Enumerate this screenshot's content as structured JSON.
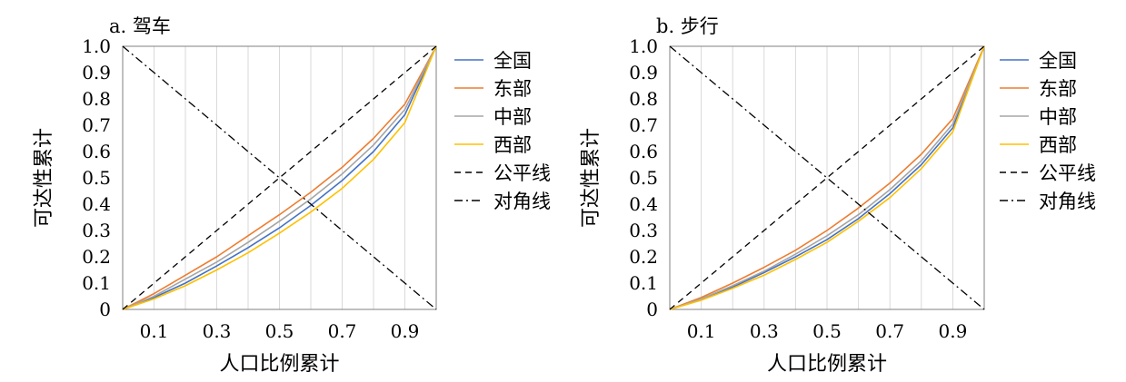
{
  "chart_data": [
    {
      "type": "line",
      "title": "a. 驾车",
      "xlabel": "人口比例累计",
      "ylabel": "可达性累计",
      "xlim": [
        0,
        1
      ],
      "ylim": [
        0,
        1
      ],
      "xticks": [
        0.1,
        0.3,
        0.5,
        0.7,
        0.9
      ],
      "xtick_labels": [
        "0.1",
        "0.3",
        "0.5",
        "0.7",
        "0.9"
      ],
      "yticks": [
        0,
        0.1,
        0.2,
        0.3,
        0.4,
        0.5,
        0.6,
        0.7,
        0.8,
        0.9,
        1.0
      ],
      "ytick_labels": [
        "0",
        "0.1",
        "0.2",
        "0.3",
        "0.4",
        "0.5",
        "0.6",
        "0.7",
        "0.8",
        "0.9",
        "1.0"
      ],
      "grid": "vertical",
      "legend_position": "right",
      "x": [
        0,
        0.1,
        0.2,
        0.3,
        0.4,
        0.5,
        0.6,
        0.7,
        0.8,
        0.9,
        1.0
      ],
      "series": [
        {
          "name": "全国",
          "color": "#4472c4",
          "style": "solid",
          "values": [
            0,
            0.045,
            0.1,
            0.165,
            0.235,
            0.31,
            0.395,
            0.49,
            0.6,
            0.74,
            1.0
          ]
        },
        {
          "name": "东部",
          "color": "#ed7d31",
          "style": "solid",
          "values": [
            0,
            0.06,
            0.13,
            0.2,
            0.28,
            0.36,
            0.445,
            0.54,
            0.65,
            0.78,
            1.0
          ]
        },
        {
          "name": "中部",
          "color": "#a5a5a5",
          "style": "solid",
          "values": [
            0,
            0.05,
            0.115,
            0.18,
            0.255,
            0.335,
            0.42,
            0.515,
            0.625,
            0.76,
            1.0
          ]
        },
        {
          "name": "西部",
          "color": "#ffc000",
          "style": "solid",
          "values": [
            0,
            0.04,
            0.09,
            0.15,
            0.215,
            0.29,
            0.37,
            0.46,
            0.57,
            0.71,
            1.0
          ]
        },
        {
          "name": "公平线",
          "color": "#000000",
          "style": "dash",
          "values": [
            0,
            0.1,
            0.2,
            0.3,
            0.4,
            0.5,
            0.6,
            0.7,
            0.8,
            0.9,
            1.0
          ]
        },
        {
          "name": "对角线",
          "color": "#000000",
          "style": "dashdot",
          "values": [
            1.0,
            0.9,
            0.8,
            0.7,
            0.6,
            0.5,
            0.4,
            0.3,
            0.2,
            0.1,
            0
          ]
        }
      ]
    },
    {
      "type": "line",
      "title": "b. 步行",
      "xlabel": "人口比例累计",
      "ylabel": "可达性累计",
      "xlim": [
        0,
        1
      ],
      "ylim": [
        0,
        1
      ],
      "xticks": [
        0.1,
        0.3,
        0.5,
        0.7,
        0.9
      ],
      "xtick_labels": [
        "0.1",
        "0.3",
        "0.5",
        "0.7",
        "0.9"
      ],
      "yticks": [
        0,
        0.1,
        0.2,
        0.3,
        0.4,
        0.5,
        0.6,
        0.7,
        0.8,
        0.9,
        1.0
      ],
      "ytick_labels": [
        "0",
        "0.1",
        "0.2",
        "0.3",
        "0.4",
        "0.5",
        "0.6",
        "0.7",
        "0.8",
        "0.9",
        "1.0"
      ],
      "grid": "vertical",
      "legend_position": "right",
      "x": [
        0,
        0.1,
        0.2,
        0.3,
        0.4,
        0.5,
        0.6,
        0.7,
        0.8,
        0.9,
        1.0
      ],
      "series": [
        {
          "name": "全国",
          "color": "#4472c4",
          "style": "solid",
          "values": [
            0,
            0.04,
            0.085,
            0.14,
            0.2,
            0.265,
            0.345,
            0.44,
            0.55,
            0.69,
            1.0
          ]
        },
        {
          "name": "东部",
          "color": "#ed7d31",
          "style": "solid",
          "values": [
            0,
            0.045,
            0.1,
            0.16,
            0.225,
            0.3,
            0.385,
            0.48,
            0.59,
            0.725,
            1.0
          ]
        },
        {
          "name": "中部",
          "color": "#a5a5a5",
          "style": "solid",
          "values": [
            0,
            0.04,
            0.09,
            0.145,
            0.21,
            0.28,
            0.36,
            0.455,
            0.565,
            0.705,
            1.0
          ]
        },
        {
          "name": "西部",
          "color": "#ffc000",
          "style": "solid",
          "values": [
            0,
            0.035,
            0.08,
            0.13,
            0.19,
            0.255,
            0.335,
            0.425,
            0.535,
            0.675,
            1.0
          ]
        },
        {
          "name": "公平线",
          "color": "#000000",
          "style": "dash",
          "values": [
            0,
            0.1,
            0.2,
            0.3,
            0.4,
            0.5,
            0.6,
            0.7,
            0.8,
            0.9,
            1.0
          ]
        },
        {
          "name": "对角线",
          "color": "#000000",
          "style": "dashdot",
          "values": [
            1.0,
            0.9,
            0.8,
            0.7,
            0.6,
            0.5,
            0.4,
            0.3,
            0.2,
            0.1,
            0
          ]
        }
      ]
    }
  ]
}
